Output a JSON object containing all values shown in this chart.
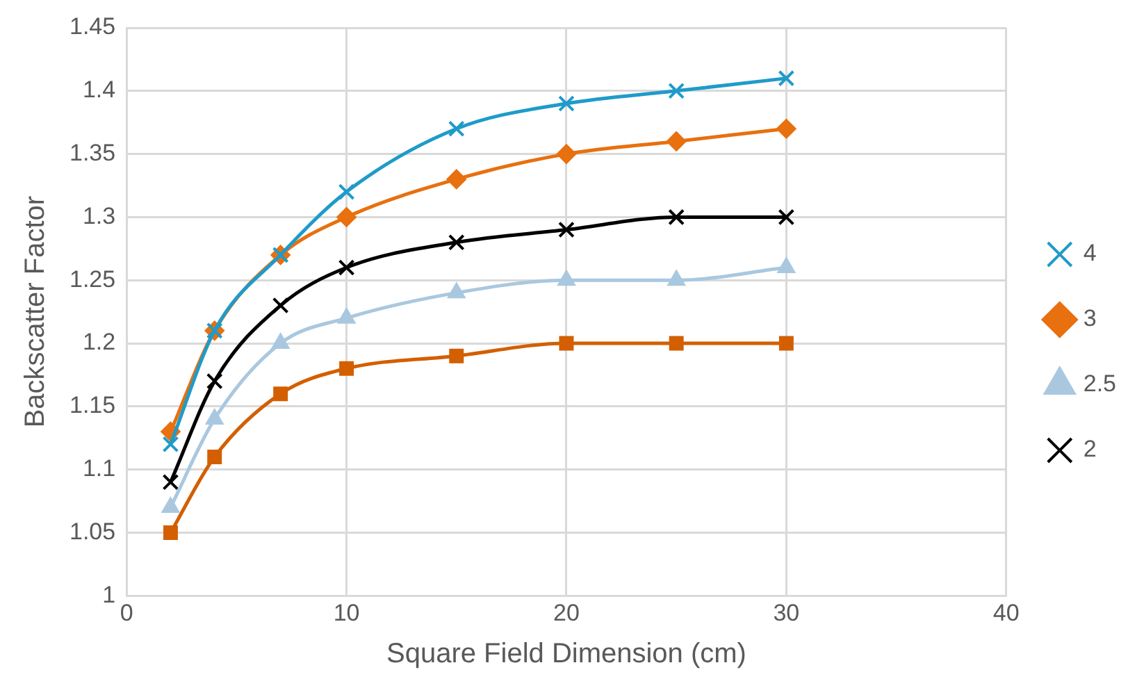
{
  "chart_data": {
    "type": "line",
    "xlabel": "Square Field Dimension (cm)",
    "ylabel": "Backscatter Factor",
    "x": [
      2,
      4,
      7,
      10,
      15,
      20,
      25,
      30
    ],
    "series": [
      {
        "name": "4",
        "color": "#1f9bc9",
        "marker": "cross",
        "values": [
          1.12,
          1.21,
          1.27,
          1.32,
          1.37,
          1.39,
          1.4,
          1.41
        ]
      },
      {
        "name": "3",
        "color": "#e8700f",
        "marker": "diamond",
        "values": [
          1.13,
          1.21,
          1.27,
          1.3,
          1.33,
          1.35,
          1.36,
          1.37
        ]
      },
      {
        "name": "2.5",
        "color": "#a9c8e0",
        "marker": "triangle",
        "values": [
          1.07,
          1.14,
          1.2,
          1.22,
          1.24,
          1.25,
          1.25,
          1.26
        ]
      },
      {
        "name": "2",
        "color": "#000000",
        "marker": "cross",
        "values": [
          1.09,
          1.17,
          1.23,
          1.26,
          1.28,
          1.29,
          1.3,
          1.3
        ]
      },
      {
        "color": "#d35f00",
        "marker": "square",
        "values": [
          1.05,
          1.11,
          1.16,
          1.18,
          1.19,
          1.2,
          1.2,
          1.2
        ]
      }
    ],
    "xlim": [
      0,
      40
    ],
    "xticks": [
      0,
      10,
      20,
      30,
      40
    ],
    "ylim": [
      1,
      1.45
    ],
    "yticks": [
      1,
      1.05,
      1.1,
      1.15,
      1.2,
      1.25,
      1.3,
      1.35,
      1.4,
      1.45
    ],
    "grid": true,
    "legend": "right",
    "line_style": "solid"
  }
}
